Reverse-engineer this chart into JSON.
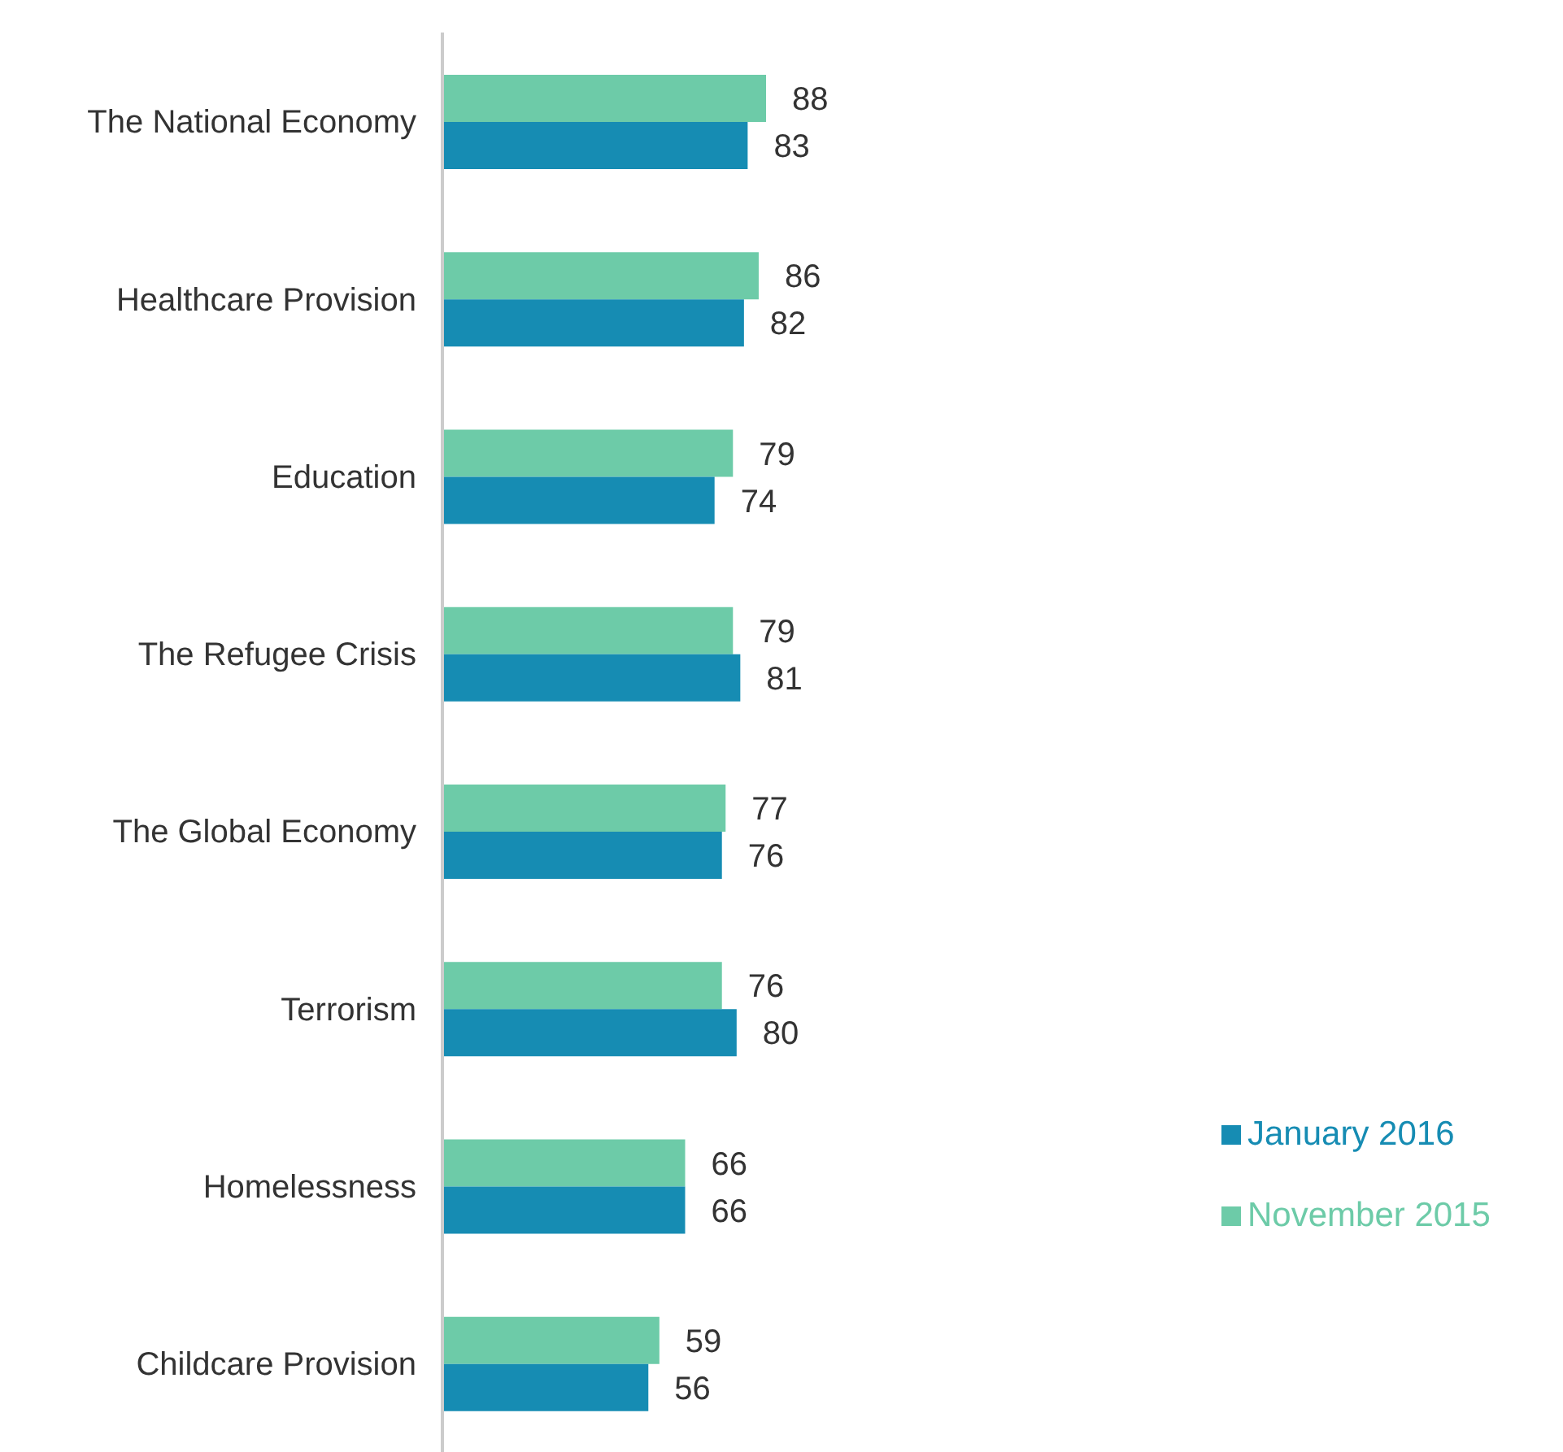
{
  "chart_data": {
    "type": "bar",
    "orientation": "horizontal",
    "categories": [
      "The National Economy",
      "Healthcare Provision",
      "Education",
      "The Refugee Crisis",
      "The Global Economy",
      "Terrorism",
      "Homelessness",
      "Childcare Provision"
    ],
    "series": [
      {
        "name": "November 2015",
        "color": "#6dcba8",
        "values": [
          88,
          86,
          79,
          79,
          77,
          76,
          66,
          59
        ]
      },
      {
        "name": "January 2016",
        "color": "#168cb3",
        "values": [
          83,
          82,
          74,
          81,
          76,
          80,
          66,
          56
        ]
      }
    ],
    "data_labels": true,
    "legend": "right",
    "grid": false
  }
}
